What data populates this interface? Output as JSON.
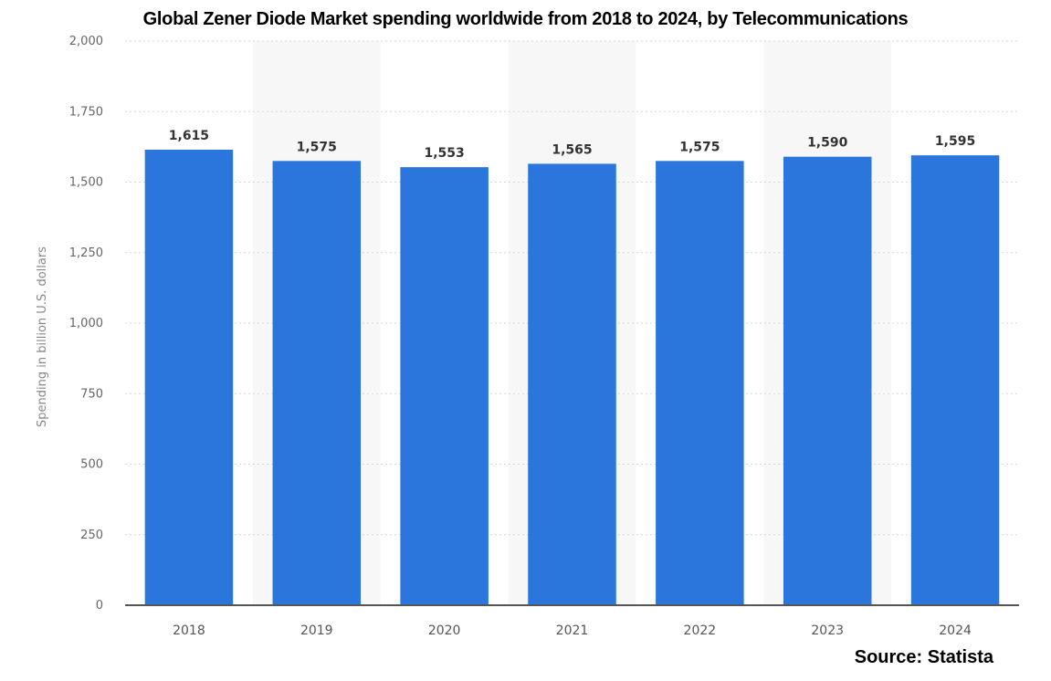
{
  "chart_data": {
    "type": "bar",
    "title": "Global Zener Diode Market spending worldwide from 2018 to 2024, by Telecommunications",
    "xlabel": "",
    "ylabel": "Spending in billion U.S. dollars",
    "categories": [
      "2018",
      "2019",
      "2020",
      "2021",
      "2022",
      "2023",
      "2024"
    ],
    "values": [
      1615,
      1575,
      1553,
      1565,
      1575,
      1590,
      1595
    ],
    "data_labels": [
      "1,615",
      "1,575",
      "1,553",
      "1,565",
      "1,575",
      "1,590",
      "1,595"
    ],
    "ylim": [
      0,
      2000
    ],
    "yticks": [
      0,
      250,
      500,
      750,
      1000,
      1250,
      1500,
      1750,
      2000
    ],
    "ytick_labels": [
      "0",
      "250",
      "500",
      "750",
      "1,000",
      "1,250",
      "1,500",
      "1,750",
      "2,000"
    ],
    "grid": true,
    "bar_color": "#2a76dd",
    "band_color": "#f7f7f7"
  },
  "source": "Source: Statista"
}
